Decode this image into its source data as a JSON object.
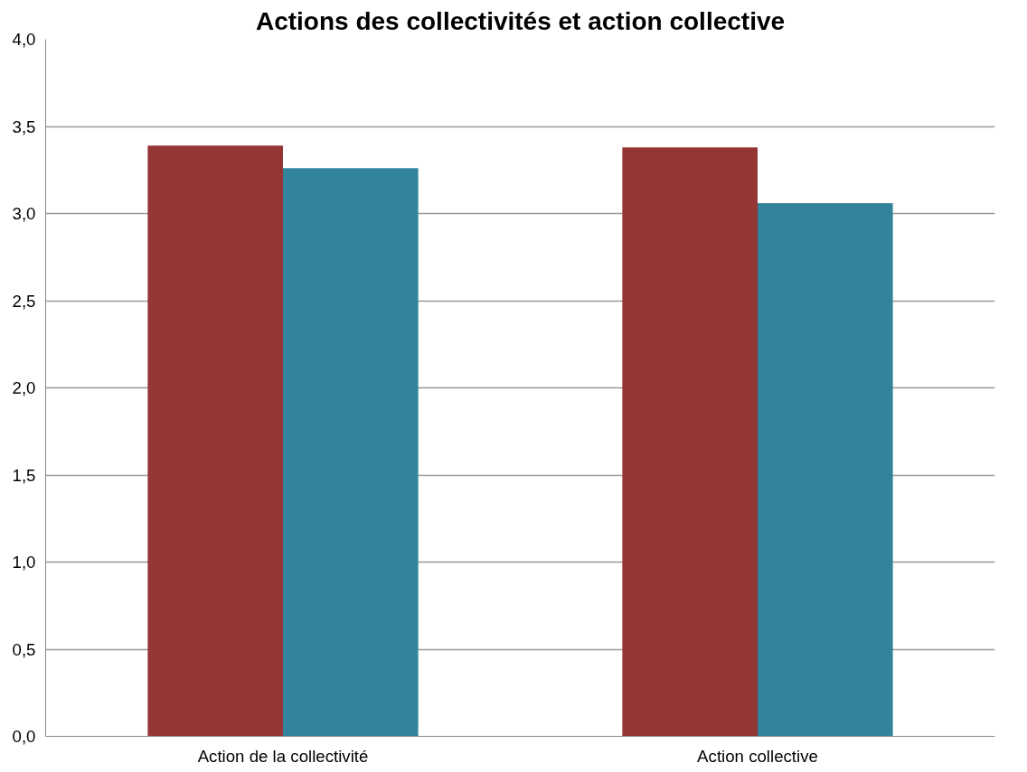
{
  "chart_data": {
    "type": "bar",
    "title": "Actions des collectivités et action collective",
    "categories": [
      "Action de la collectivité",
      "Action collective"
    ],
    "series": [
      {
        "color": "#943634",
        "values": [
          3.39,
          3.38
        ]
      },
      {
        "color": "#31849b",
        "values": [
          3.26,
          3.06
        ]
      }
    ],
    "ylim": [
      0,
      4
    ],
    "yticks": [
      {
        "value": 0,
        "label": "0,0"
      },
      {
        "value": 0.5,
        "label": "0,5"
      },
      {
        "value": 1,
        "label": "1,0"
      },
      {
        "value": 1.5,
        "label": "1,5"
      },
      {
        "value": 2,
        "label": "2,0"
      },
      {
        "value": 2.5,
        "label": "2,5"
      },
      {
        "value": 3,
        "label": "3,0"
      },
      {
        "value": 3.5,
        "label": "3,5"
      },
      {
        "value": 4,
        "label": "4,0"
      }
    ],
    "grid": "y"
  }
}
